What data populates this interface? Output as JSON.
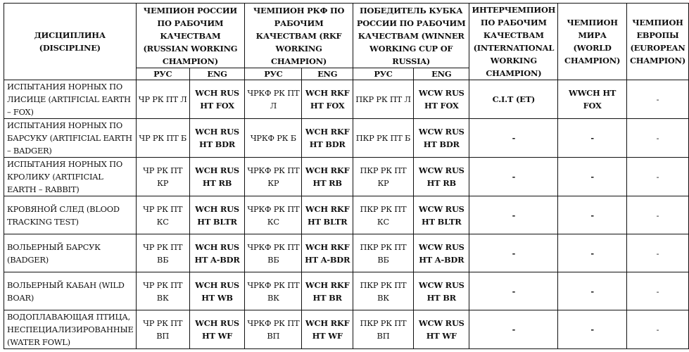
{
  "header": {
    "discipline": "ДИСЦИПЛИНА (DISCIPLINE)",
    "russian_champion": "ЧЕМПИОН РОССИИ ПО РАБОЧИМ КАЧЕСТВАМ (RUSSIAN WORKING CHAMPION)",
    "rkf_champion": "ЧЕМПИОН РКФ ПО РАБОЧИМ КАЧЕСТВАМ (RKF WORKING CHAMPION)",
    "cup_winner": "ПОБЕДИТЕЛЬ КУБКА РОССИИ ПО РАБОЧИМ КАЧЕСТВАМ (WINNER WORKING CUP OF RUSSIA)",
    "international": "ИНТЕРЧЕМПИОН ПО РАБОЧИМ КАЧЕСТВАМ (INTERNATIONAL WORKING CHAMPION)",
    "world": "ЧЕМПИОН МИРА (WORLD CHAMPION)",
    "europe": "ЧЕМПИОН ЕВРОПЫ (EUROPEAN CHAMPION)",
    "rus": "РУС",
    "eng": "ENG"
  },
  "rows": [
    {
      "discipline": "ИСПЫТАНИЯ НОРНЫХ ПО ЛИСИЦЕ (ARTIFICIAL EARTH – FOX)",
      "ru_rus": "ЧР РК ПТ Л",
      "ru_eng": "WCH RUS HT FOX",
      "rkf_rus": "ЧРКФ РК ПТ Л",
      "rkf_eng": "WCH RKF HT FOX",
      "cup_rus": "ПКР РК ПТ Л",
      "cup_eng": "WCW RUS HT FOX",
      "international": "C.I.T (ET)",
      "world": "WWCH HT FOX",
      "europe": "-"
    },
    {
      "discipline": "ИСПЫТАНИЯ НОРНЫХ ПО БАРСУКУ (ARTIFICIAL EARTH – BADGER)",
      "ru_rus": "ЧР РК ПТ Б",
      "ru_eng": "WCH RUS HT BDR",
      "rkf_rus": "ЧРКФ РК Б",
      "rkf_eng": "WCH RKF HT BDR",
      "cup_rus": "ПКР РК ПТ Б",
      "cup_eng": "WCW RUS HT BDR",
      "international": "-",
      "world": "-",
      "europe": "-"
    },
    {
      "discipline": "ИСПЫТАНИЯ НОРНЫХ ПО КРОЛИКУ (ARTIFICIAL EARTH – RABBIT)",
      "ru_rus": "ЧР РК ПТ КР",
      "ru_eng": "WCH RUS HT RB",
      "rkf_rus": "ЧРКФ РК ПТ КР",
      "rkf_eng": "WCH RKF HT RB",
      "cup_rus": "ПКР РК ПТ КР",
      "cup_eng": "WCW RUS HT RB",
      "international": "-",
      "world": "-",
      "europe": "-"
    },
    {
      "discipline": "КРОВЯНОЙ СЛЕД (BLOOD TRACKING TEST)",
      "ru_rus": "ЧР РК ПТ КС",
      "ru_eng": "WCH RUS HT BLTR",
      "rkf_rus": "ЧРКФ РК ПТ КС",
      "rkf_eng": "WCH RKF HT BLTR",
      "cup_rus": "ПКР РК ПТ КС",
      "cup_eng": "WCW RUS HT BLTR",
      "international": "-",
      "world": "-",
      "europe": "-"
    },
    {
      "discipline": "ВОЛЬЕРНЫЙ БАРСУК (BADGER)",
      "ru_rus": "ЧР РК ПТ ВБ",
      "ru_eng": "WCH RUS HT A-BDR",
      "rkf_rus": "ЧРКФ РК ПТ ВБ",
      "rkf_eng": "WCH RKF HT A-BDR",
      "cup_rus": "ПКР РК ПТ ВБ",
      "cup_eng": "WCW RUS HT A-BDR",
      "international": "-",
      "world": "-",
      "europe": "-"
    },
    {
      "discipline": "ВОЛЬЕРНЫЙ КАБАН (WILD BOAR)",
      "ru_rus": "ЧР РК ПТ ВК",
      "ru_eng": "WCH RUS HT WB",
      "rkf_rus": "ЧРКФ РК ПТ ВК",
      "rkf_eng": "WCH RKF HT BR",
      "cup_rus": "ПКР РК ПТ ВК",
      "cup_eng": "WCW RUS HT BR",
      "international": "-",
      "world": "-",
      "europe": "-"
    },
    {
      "discipline": "ВОДОПЛАВАЮЩАЯ ПТИЦА, НЕСПЕЦИАЛИЗИРОВАННЫЕ (WATER FOWL)",
      "ru_rus": "ЧР РК ПТ ВП",
      "ru_eng": "WCH RUS HT WF",
      "rkf_rus": "ЧРКФ РК ПТ ВП",
      "rkf_eng": "WCH RKF HT WF",
      "cup_rus": "ПКР РК ПТ ВП",
      "cup_eng": "WCW RUS HT WF",
      "international": "-",
      "world": "-",
      "europe": "-"
    }
  ]
}
